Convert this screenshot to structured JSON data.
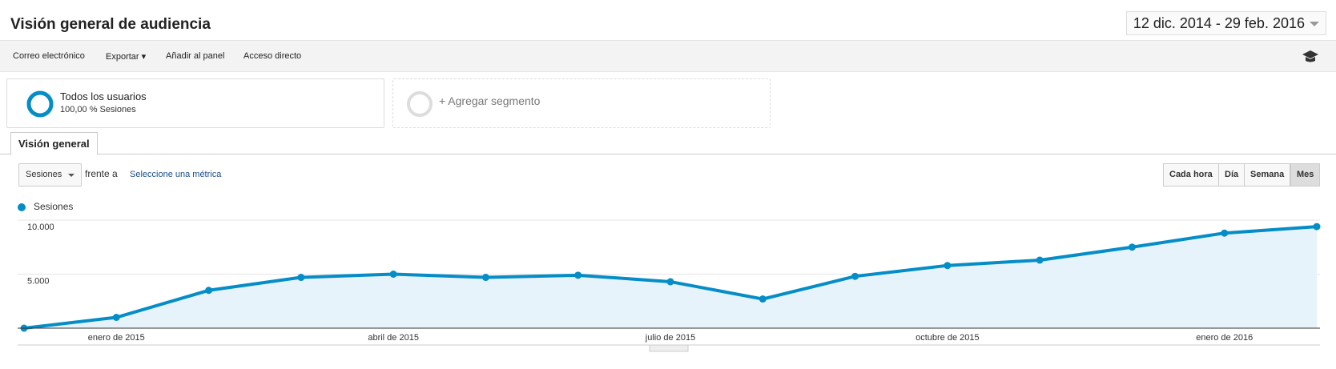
{
  "header": {
    "title": "Visión general de audiencia",
    "date_range": "12 dic. 2014 - 29 feb. 2016"
  },
  "toolbar": [
    "Correo electrónico",
    "Exportar",
    "Añadir al panel",
    "Acceso directo"
  ],
  "segments": [
    {
      "name": "Todos los usuarios",
      "detail": "100,00 % Sesiones"
    },
    {
      "name": "+ Agregar segmento"
    }
  ],
  "tab": "Visión general",
  "controls": {
    "metric": "Sesiones",
    "versus": "frente a",
    "select_metric": "Seleccione una métrica",
    "granularity": [
      "Cada hora",
      "Día",
      "Semana",
      "Mes"
    ]
  },
  "chart_data": {
    "type": "line",
    "area": true,
    "grid": true,
    "categories": [
      null,
      "enero de 2015",
      null,
      null,
      "abril de 2015",
      null,
      null,
      "julio de 2015",
      null,
      null,
      "octubre de 2015",
      null,
      null,
      "enero de 2016",
      null
    ],
    "series": [
      {
        "name": "Sesiones",
        "color": "#058dc7",
        "values": [
          0,
          1000,
          3500,
          4700,
          5000,
          4700,
          4900,
          4300,
          2700,
          4800,
          5800,
          6300,
          7500,
          8800,
          9400
        ]
      }
    ],
    "ylim": [
      0,
      10000
    ],
    "yticks": [
      {
        "value": 5000,
        "label": "5.000"
      },
      {
        "value": 10000,
        "label": "10.000"
      }
    ]
  }
}
